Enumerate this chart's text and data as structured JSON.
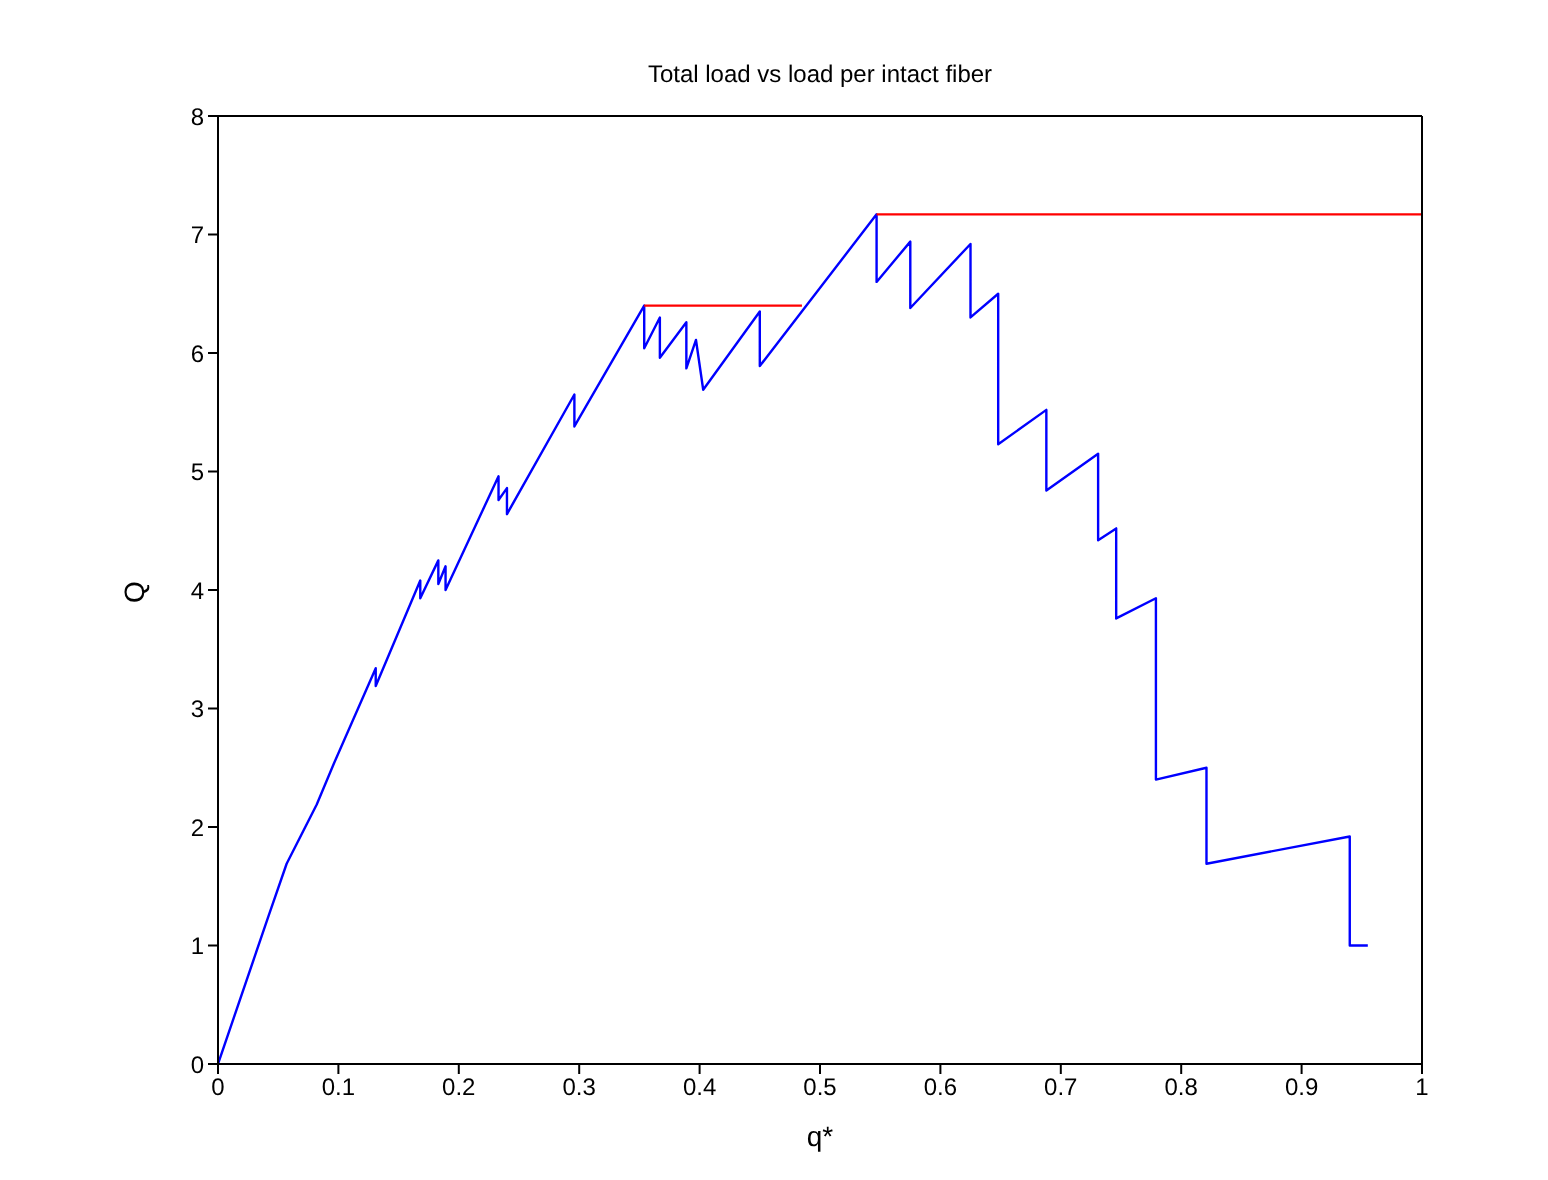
{
  "chart_data": {
    "type": "line",
    "title": "Total load vs load per intact fiber",
    "xlabel": "q*",
    "ylabel": "Q",
    "xlim": [
      0,
      1
    ],
    "ylim": [
      0,
      8
    ],
    "xticks": [
      0,
      0.1,
      0.2,
      0.3,
      0.4,
      0.5,
      0.6,
      0.7,
      0.8,
      0.9,
      1
    ],
    "yticks": [
      0,
      1,
      2,
      3,
      4,
      5,
      6,
      7,
      8
    ],
    "legend": false,
    "marker": "none",
    "line_style": "solid",
    "series": [
      {
        "color": "#0000ff",
        "x": [
          0,
          0.042,
          0.057,
          0.082,
          0.096,
          0.131,
          0.131,
          0.168,
          0.168,
          0.183,
          0.183,
          0.189,
          0.189,
          0.233,
          0.233,
          0.24,
          0.24,
          0.296,
          0.296,
          0.354,
          0.354,
          0.367,
          0.367,
          0.389,
          0.389,
          0.397,
          0.403,
          0.45,
          0.45,
          0.547,
          0.547,
          0.575,
          0.575,
          0.625,
          0.625,
          0.648,
          0.648,
          0.688,
          0.688,
          0.731,
          0.731,
          0.746,
          0.746,
          0.779,
          0.779,
          0.821,
          0.821,
          0.94,
          0.94,
          0.955
        ],
        "values": [
          0,
          1.25,
          1.69,
          2.19,
          2.53,
          3.34,
          3.19,
          4.08,
          3.93,
          4.25,
          4.05,
          4.2,
          4.0,
          4.96,
          4.76,
          4.86,
          4.64,
          5.65,
          5.38,
          6.4,
          6.04,
          6.3,
          5.96,
          6.26,
          5.87,
          6.11,
          5.69,
          6.35,
          5.89,
          7.17,
          6.6,
          6.94,
          6.38,
          6.92,
          6.3,
          6.5,
          5.23,
          5.52,
          4.84,
          5.15,
          4.42,
          4.52,
          3.76,
          3.93,
          2.4,
          2.5,
          1.69,
          1.92,
          1.0,
          1.0
        ]
      },
      {
        "color": "#ff0000",
        "x": [
          0.354,
          0.485
        ],
        "values": [
          6.4,
          6.4
        ]
      },
      {
        "color": "#ff0000",
        "x": [
          0.547,
          1
        ],
        "values": [
          7.17,
          7.17
        ]
      }
    ]
  }
}
